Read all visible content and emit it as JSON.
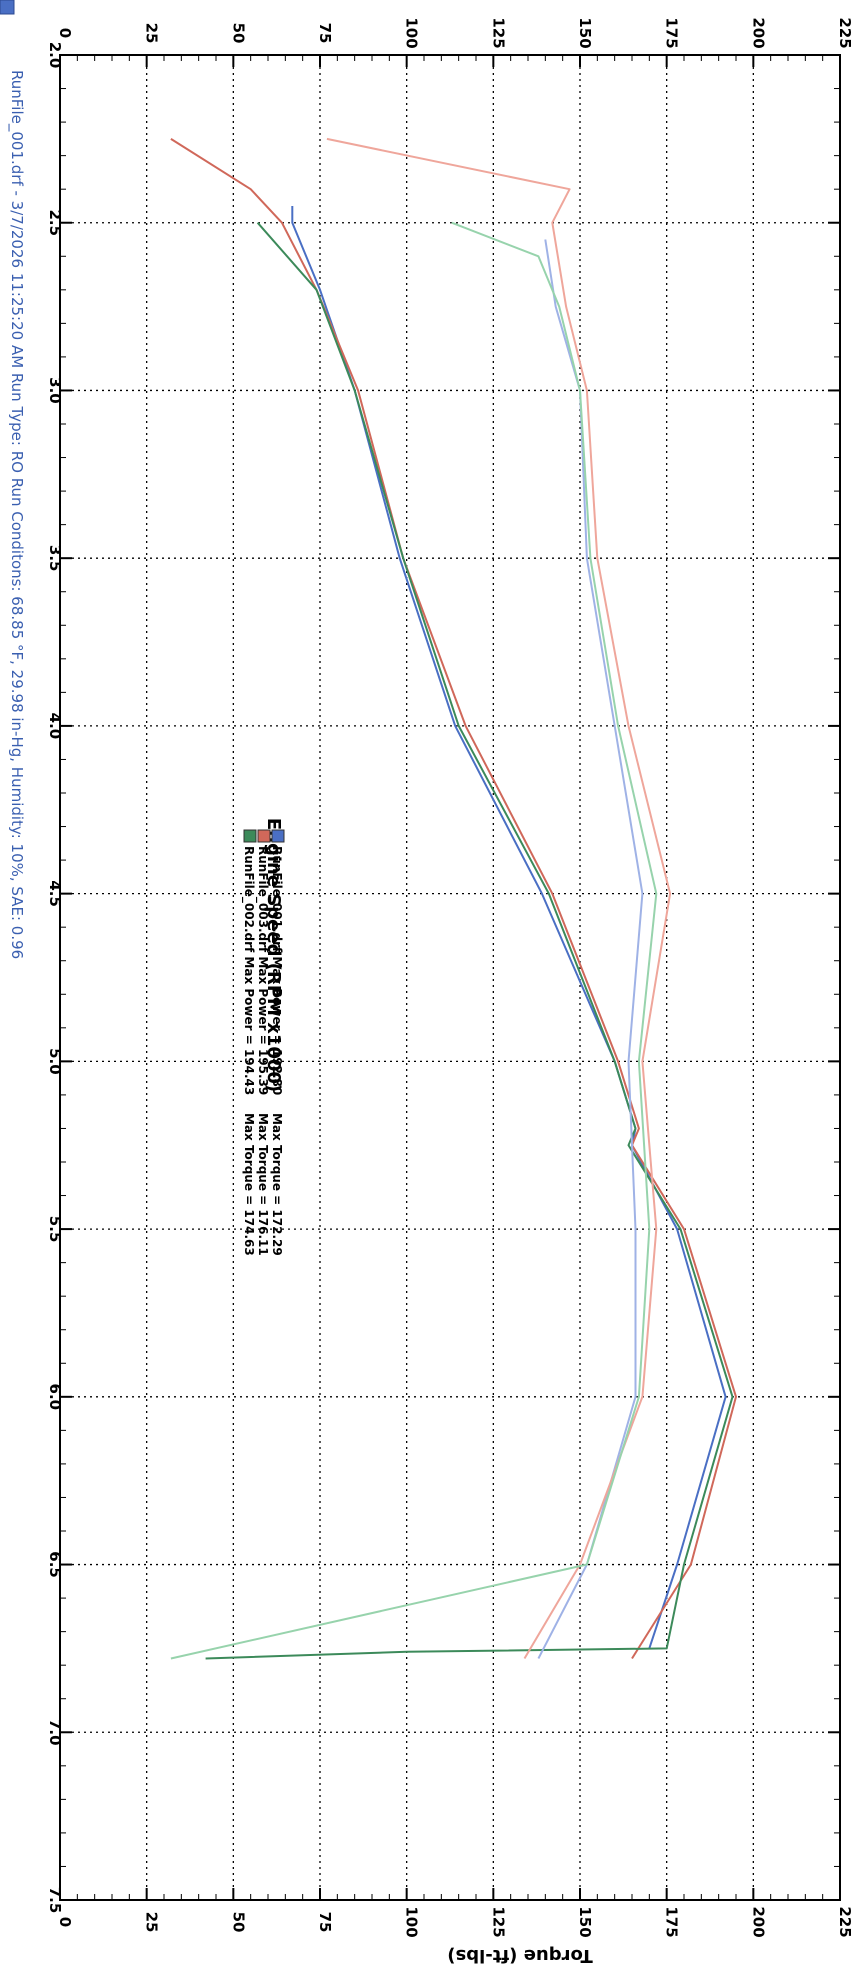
{
  "chart_data": {
    "type": "line",
    "orientation": "rotated-90-clockwise",
    "x_axis": {
      "label": "Engine Speed (RPM x1000)",
      "range": [
        2.0,
        7.5
      ],
      "ticks": [
        "2.0",
        "2.5",
        "3.0",
        "3.5",
        "4.0",
        "4.5",
        "5.0",
        "5.5",
        "6.0",
        "6.5",
        "7.0",
        "7.5"
      ]
    },
    "y_axis_right": {
      "label": "Torque (ft-lbs)",
      "range": [
        0,
        225
      ],
      "ticks": [
        "0",
        "25",
        "50",
        "75",
        "100",
        "125",
        "150",
        "175",
        "200",
        "225"
      ]
    },
    "y_axis_left": {
      "label": "",
      "range": [
        0,
        225
      ],
      "ticks": [
        "0",
        "25",
        "50",
        "75",
        "100",
        "125",
        "150",
        "175",
        "200",
        "225"
      ]
    },
    "grid": true,
    "legend_position": "center",
    "legend": [
      {
        "name": "RunFile_001.drf Max Power = 192.80",
        "torque": "Max Torque = 172.29",
        "color": "#4a6fc4"
      },
      {
        "name": "RunFile_003.drf Max Power = 195.39",
        "torque": "Max Torque = 176.11",
        "color": "#d0685a"
      },
      {
        "name": "RunFile_002.drf Max Power = 194.43",
        "torque": "Max Torque = 174.63",
        "color": "#3c8a5a"
      }
    ],
    "footer": {
      "text": "RunFile_001.drf - 3/7/2026 11:25:20 AM  Run Type: RO  Run Conditons: 68.85 °F, 29.98 in-Hg, Humidity: 10%, SAE: 0.96",
      "color": "#3a5fb0"
    },
    "series": [
      {
        "name": "RunFile_001.drf",
        "kind": "power",
        "color": "#4a6fc4",
        "x": [
          2.45,
          2.5,
          2.7,
          3.0,
          3.5,
          4.0,
          4.5,
          5.0,
          5.2,
          5.25,
          5.5,
          6.0,
          6.5,
          6.75
        ],
        "y": [
          67,
          67,
          75,
          85,
          98,
          114,
          139,
          160,
          166,
          165,
          178,
          192,
          178,
          170
        ]
      },
      {
        "name": "RunFile_003.drf",
        "kind": "power",
        "color": "#d0685a",
        "x": [
          2.25,
          2.4,
          2.5,
          2.7,
          3.0,
          3.5,
          4.0,
          4.5,
          5.0,
          5.2,
          5.25,
          5.5,
          6.0,
          6.5,
          6.78
        ],
        "y": [
          32,
          55,
          64,
          74,
          86,
          99,
          117,
          142,
          161,
          167,
          165,
          180,
          195,
          182,
          165
        ]
      },
      {
        "name": "RunFile_002.drf",
        "kind": "power",
        "color": "#3c8a5a",
        "x": [
          2.5,
          2.7,
          3.0,
          3.5,
          4.0,
          4.5,
          5.0,
          5.2,
          5.25,
          5.5,
          6.0,
          6.5,
          6.75,
          6.76,
          6.78
        ],
        "y": [
          57,
          74,
          85,
          99,
          115,
          141,
          160,
          166,
          164,
          179,
          194,
          180,
          175,
          100,
          42
        ]
      },
      {
        "name": "RunFile_001.drf",
        "kind": "torque",
        "color": "#9fb2e6",
        "x": [
          2.55,
          2.75,
          3.0,
          3.5,
          4.0,
          4.5,
          5.0,
          5.5,
          6.0,
          6.5,
          6.78
        ],
        "y": [
          140,
          143,
          150,
          152,
          160,
          168,
          164,
          166,
          166,
          152,
          138
        ]
      },
      {
        "name": "RunFile_003.drf",
        "kind": "torque",
        "color": "#efa69b",
        "x": [
          2.25,
          2.4,
          2.5,
          2.75,
          3.0,
          3.5,
          4.0,
          4.5,
          5.0,
          5.5,
          6.0,
          6.5,
          6.78
        ],
        "y": [
          77,
          147,
          142,
          146,
          152,
          155,
          164,
          176,
          168,
          172,
          168,
          150,
          134
        ]
      },
      {
        "name": "RunFile_002.drf",
        "kind": "torque",
        "color": "#97d3ac",
        "x": [
          2.5,
          2.6,
          2.75,
          3.0,
          3.5,
          4.0,
          4.5,
          5.0,
          5.5,
          6.0,
          6.5,
          6.78
        ],
        "y": [
          113,
          138,
          144,
          150,
          153,
          161,
          172,
          167,
          170,
          167,
          152,
          32
        ]
      }
    ]
  }
}
